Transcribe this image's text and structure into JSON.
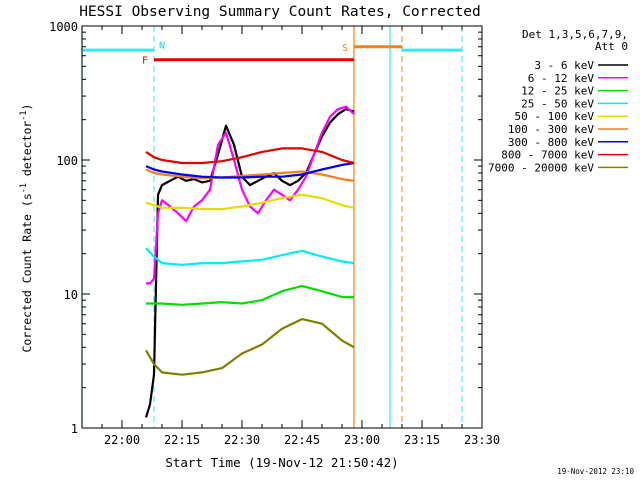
{
  "chart_data": {
    "type": "line",
    "title": "HESSI Observing Summary Count Rates, Corrected",
    "xlabel": "Start Time (19-Nov-12 21:50:42)",
    "ylabel": "Corrected Count Rate (s⁻¹ detector⁻¹)",
    "yscale": "log",
    "ylim": [
      1,
      1000
    ],
    "xlim": [
      "21:50",
      "23:30"
    ],
    "x_ticks": [
      "22:00",
      "22:15",
      "22:30",
      "22:45",
      "23:00",
      "23:15",
      "23:30"
    ],
    "y_ticks": [
      "1",
      "10",
      "100",
      "1000"
    ],
    "footer_date": "19-Nov-2012 23:10",
    "legend": {
      "placement": "right",
      "header_line1": "Det 1,3,5,6,7,9,",
      "header_line2": "Att 0"
    },
    "flags": [
      {
        "label": "F",
        "color": "#e00000",
        "y": 560,
        "start": "22:08",
        "end": "22:58"
      },
      {
        "label": "S",
        "color": "#f08020",
        "y": 700,
        "start": "22:58",
        "end": "23:10"
      }
    ],
    "flag_labels": [
      {
        "label": "N",
        "color": "#00dddd",
        "x": "22:10",
        "y": 730
      }
    ],
    "orbit_markers": {
      "color": "#33e8ee",
      "daylight_level": 660,
      "daylight_segments": [
        [
          "21:50",
          "22:08"
        ],
        [
          "23:10",
          "23:25"
        ]
      ],
      "solid_lines": [
        "21:50",
        "23:07"
      ],
      "dashed_lines": [
        "22:08",
        "23:25"
      ],
      "orange_solid": "22:58",
      "orange_dashed": "23:10"
    },
    "series": [
      {
        "name": "3 - 6 keV",
        "color": "#000000",
        "times": [
          "22:06",
          "22:07",
          "22:08",
          "22:09",
          "22:10",
          "22:12",
          "22:14",
          "22:16",
          "22:18",
          "22:20",
          "22:22",
          "22:24",
          "22:26",
          "22:28",
          "22:30",
          "22:32",
          "22:34",
          "22:36",
          "22:38",
          "22:40",
          "22:42",
          "22:44",
          "22:46",
          "22:48",
          "22:50",
          "22:52",
          "22:54",
          "22:56",
          "22:58"
        ],
        "values": [
          1.2,
          1.5,
          2.5,
          55,
          65,
          70,
          75,
          70,
          72,
          68,
          70,
          110,
          180,
          130,
          75,
          65,
          70,
          75,
          80,
          70,
          65,
          70,
          80,
          110,
          150,
          190,
          220,
          240,
          230
        ]
      },
      {
        "name": "6 - 12 keV",
        "color": "#ff00ff",
        "times": [
          "22:06",
          "22:07",
          "22:08",
          "22:09",
          "22:10",
          "22:12",
          "22:14",
          "22:16",
          "22:18",
          "22:20",
          "22:22",
          "22:24",
          "22:26",
          "22:28",
          "22:30",
          "22:32",
          "22:34",
          "22:36",
          "22:38",
          "22:40",
          "22:42",
          "22:44",
          "22:46",
          "22:48",
          "22:50",
          "22:52",
          "22:54",
          "22:56",
          "22:58"
        ],
        "values": [
          12,
          12,
          13,
          40,
          50,
          45,
          40,
          35,
          45,
          50,
          60,
          130,
          160,
          100,
          60,
          45,
          40,
          50,
          60,
          55,
          50,
          60,
          75,
          110,
          160,
          210,
          240,
          250,
          220
        ]
      },
      {
        "name": "12 - 25 keV",
        "color": "#00dd00",
        "times": [
          "22:06",
          "22:08",
          "22:10",
          "22:15",
          "22:20",
          "22:25",
          "22:30",
          "22:35",
          "22:40",
          "22:45",
          "22:50",
          "22:55",
          "22:58"
        ],
        "values": [
          8.5,
          8.5,
          8.5,
          8.3,
          8.5,
          8.7,
          8.5,
          9,
          10.5,
          11.5,
          10.5,
          9.5,
          9.5
        ]
      },
      {
        "name": "25 - 50 keV",
        "color": "#00eeee",
        "times": [
          "22:06",
          "22:08",
          "22:10",
          "22:15",
          "22:20",
          "22:25",
          "22:30",
          "22:35",
          "22:40",
          "22:45",
          "22:50",
          "22:55",
          "22:58"
        ],
        "values": [
          22,
          19,
          17,
          16.5,
          17,
          17,
          17.5,
          18,
          19.5,
          21,
          19,
          17.5,
          17
        ]
      },
      {
        "name": "50 - 100 keV",
        "color": "#e0e000",
        "times": [
          "22:06",
          "22:08",
          "22:10",
          "22:15",
          "22:20",
          "22:25",
          "22:30",
          "22:35",
          "22:40",
          "22:45",
          "22:50",
          "22:55",
          "22:58"
        ],
        "values": [
          48,
          46,
          44,
          44,
          43,
          43,
          45,
          48,
          52,
          55,
          52,
          46,
          44
        ]
      },
      {
        "name": "100 - 300 keV",
        "color": "#f08020",
        "times": [
          "22:06",
          "22:08",
          "22:10",
          "22:15",
          "22:20",
          "22:25",
          "22:30",
          "22:35",
          "22:40",
          "22:45",
          "22:50",
          "22:55",
          "22:58"
        ],
        "values": [
          85,
          80,
          78,
          75,
          73,
          74,
          76,
          78,
          80,
          82,
          78,
          72,
          70
        ]
      },
      {
        "name": "300 - 800 keV",
        "color": "#0000ee",
        "times": [
          "22:06",
          "22:08",
          "22:10",
          "22:15",
          "22:20",
          "22:25",
          "22:30",
          "22:35",
          "22:40",
          "22:45",
          "22:50",
          "22:55",
          "22:58"
        ],
        "values": [
          90,
          85,
          82,
          78,
          75,
          74,
          74,
          75,
          75,
          78,
          85,
          92,
          95
        ]
      },
      {
        "name": "800 - 7000 keV",
        "color": "#e00000",
        "times": [
          "22:06",
          "22:08",
          "22:10",
          "22:15",
          "22:20",
          "22:25",
          "22:30",
          "22:35",
          "22:40",
          "22:45",
          "22:50",
          "22:55",
          "22:58"
        ],
        "values": [
          115,
          105,
          100,
          95,
          95,
          98,
          105,
          115,
          122,
          122,
          115,
          100,
          95
        ]
      },
      {
        "name": "7000 - 20000 keV",
        "color": "#808000",
        "times": [
          "22:06",
          "22:08",
          "22:10",
          "22:15",
          "22:20",
          "22:25",
          "22:30",
          "22:35",
          "22:40",
          "22:45",
          "22:50",
          "22:55",
          "22:58"
        ],
        "values": [
          3.8,
          3.0,
          2.6,
          2.5,
          2.6,
          2.8,
          3.6,
          4.2,
          5.5,
          6.5,
          6.0,
          4.5,
          4.0
        ]
      }
    ]
  }
}
